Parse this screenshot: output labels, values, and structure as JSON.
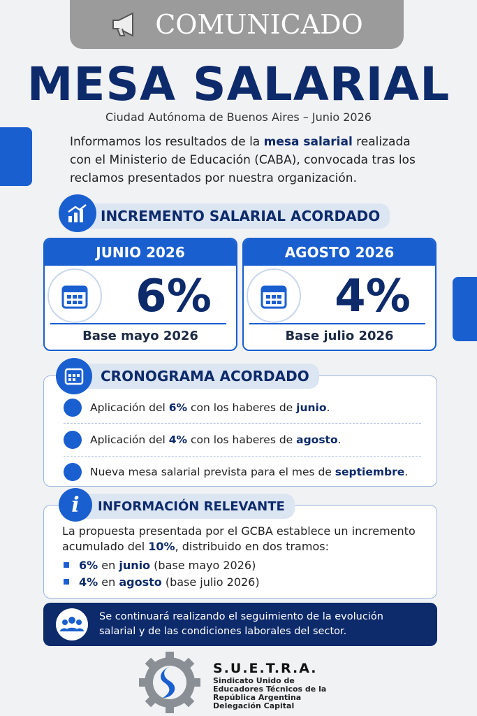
{
  "banner": "COMUNICADO",
  "title": "MESA SALARIAL",
  "subtitle": "Ciudad Autónoma de Buenos Aires – Junio 2026",
  "intro": [
    "Informamos los resultados de la ",
    "mesa salarial",
    " realizada con el Ministerio de Educación (CABA), convocada tras los reclamos presentados por nuestra organización."
  ],
  "increment": {
    "heading": "INCREMENTO SALARIAL ACORDADO",
    "cards": [
      {
        "month": "JUNIO 2026",
        "value": "6%",
        "base": "Base mayo 2026"
      },
      {
        "month": "AGOSTO 2026",
        "value": "4%",
        "base": "Base julio 2026"
      }
    ]
  },
  "schedule": {
    "heading": "CRONOGRAMA ACORDADO",
    "items": [
      [
        "Aplicación del ",
        "6%",
        " con los haberes de ",
        "junio",
        "."
      ],
      [
        "Aplicación del ",
        "4%",
        " con los haberes de ",
        "agosto",
        "."
      ],
      [
        "Nueva mesa salarial prevista para el mes de ",
        "septiembre",
        "."
      ]
    ]
  },
  "info": {
    "heading": "INFORMACIÓN RELEVANTE",
    "text": [
      "La propuesta presentada por el GCBA establece un incremento acumulado del ",
      "10%",
      ", distribuido en dos tramos:"
    ],
    "bullets": [
      [
        "6%",
        " en ",
        "junio",
        " (base mayo 2026)"
      ],
      [
        "4%",
        " en ",
        "agosto",
        " (base julio 2026)"
      ]
    ]
  },
  "note": "Se continuará realizando el seguimiento de la evolución salarial y de las condiciones laborales del sector.",
  "footer": {
    "name": "S.U.E.T.R.A.",
    "lines": [
      "Sindicato Unido de",
      "Educadores Técnicos de la",
      "República Argentina",
      "Delegación Capital"
    ]
  }
}
